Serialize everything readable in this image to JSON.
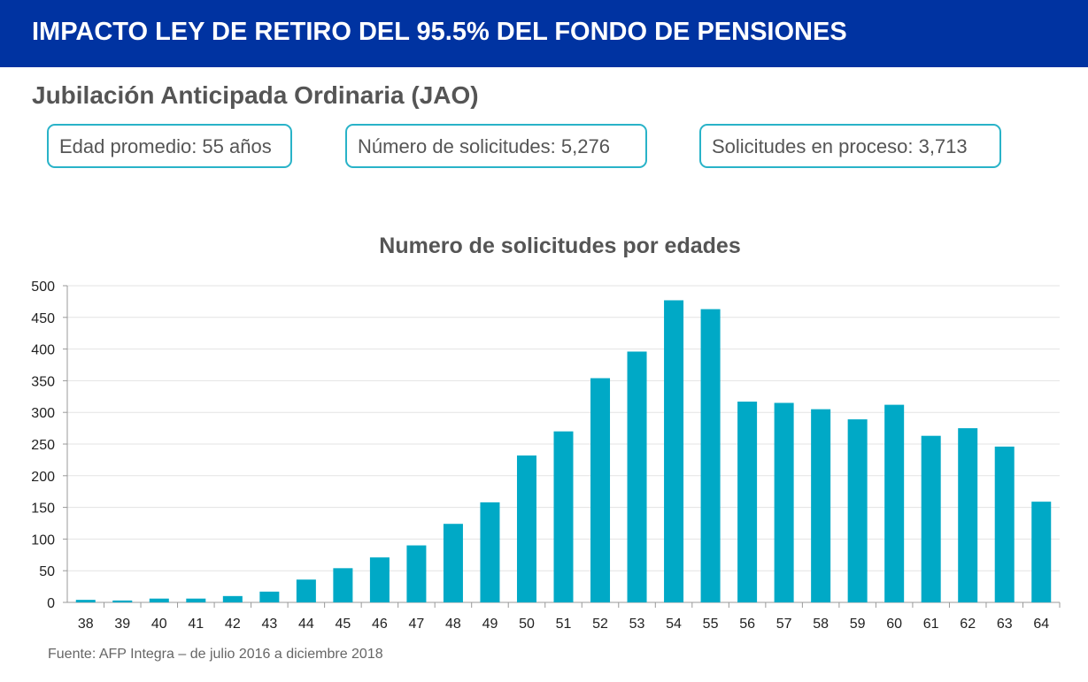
{
  "header": {
    "title": "IMPACTO LEY DE RETIRO DEL 95.5% DEL FONDO DE PENSIONES",
    "bg_color": "#0033a1"
  },
  "subtitle": "Jubilación Anticipada Ordinaria (JAO)",
  "stats": [
    "Edad promedio: 55 años",
    "Número de solicitudes: 5,276",
    "Solicitudes en proceso: 3,713"
  ],
  "source": "Fuente: AFP Integra – de julio 2016 a diciembre 2018",
  "chart_data": {
    "type": "bar",
    "title": "Numero de solicitudes por edades",
    "categories": [
      "38",
      "39",
      "40",
      "41",
      "42",
      "43",
      "44",
      "45",
      "46",
      "47",
      "48",
      "49",
      "50",
      "51",
      "52",
      "53",
      "54",
      "55",
      "56",
      "57",
      "58",
      "59",
      "60",
      "61",
      "62",
      "63",
      "64"
    ],
    "values": [
      4,
      3,
      6,
      6,
      10,
      17,
      36,
      54,
      71,
      90,
      124,
      158,
      232,
      270,
      354,
      396,
      477,
      463,
      317,
      315,
      305,
      289,
      312,
      263,
      275,
      246,
      159
    ],
    "ylim": [
      0,
      500
    ],
    "yticks": [
      0,
      50,
      100,
      150,
      200,
      250,
      300,
      350,
      400,
      450,
      500
    ],
    "grid": true,
    "bar_color": "#00a9c6"
  }
}
